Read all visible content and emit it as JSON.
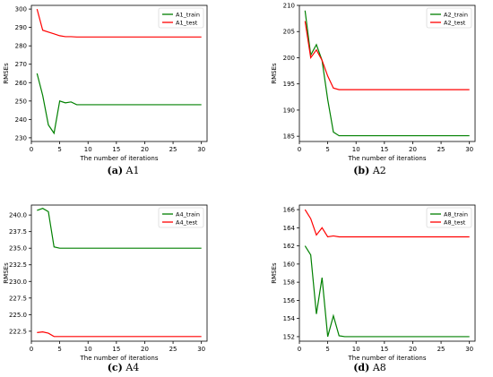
{
  "captions": [
    {
      "label": "(a)",
      "name": "A1"
    },
    {
      "label": "(b)",
      "name": "A2"
    },
    {
      "label": "(c)",
      "name": "A4"
    },
    {
      "label": "(d)",
      "name": "A8"
    }
  ],
  "chart_data": [
    {
      "id": "a1",
      "type": "line",
      "xlabel": "The number of iterations",
      "ylabel": "RMSEs",
      "xlim": [
        0,
        31
      ],
      "ylim": [
        228,
        302
      ],
      "xticks": [
        0,
        5,
        10,
        15,
        20,
        25,
        30
      ],
      "yticks": [
        230,
        240,
        250,
        260,
        270,
        280,
        290,
        300
      ],
      "ytick_labels": [
        "230",
        "240",
        "250",
        "260",
        "270",
        "280",
        "290",
        "300"
      ],
      "legend": "top-right",
      "x": [
        1,
        2,
        3,
        4,
        5,
        6,
        7,
        8,
        9,
        10,
        11,
        12,
        13,
        14,
        15,
        16,
        17,
        18,
        19,
        20,
        21,
        22,
        23,
        24,
        25,
        26,
        27,
        28,
        29,
        30
      ],
      "series": [
        {
          "name": "A1_train",
          "color": "#008000",
          "values": [
            265,
            253,
            237,
            232.5,
            250,
            249,
            249.5,
            248,
            248,
            248,
            248,
            248,
            248,
            248,
            248,
            248,
            248,
            248,
            248,
            248,
            248,
            248,
            248,
            248,
            248,
            248,
            248,
            248,
            248,
            248
          ]
        },
        {
          "name": "A1_test",
          "color": "#ff0000",
          "values": [
            300,
            288.5,
            287.5,
            286.5,
            285.5,
            285,
            285,
            284.8,
            284.8,
            284.8,
            284.8,
            284.8,
            284.8,
            284.8,
            284.8,
            284.8,
            284.8,
            284.8,
            284.8,
            284.8,
            284.8,
            284.8,
            284.8,
            284.8,
            284.8,
            284.8,
            284.8,
            284.8,
            284.8,
            284.8
          ]
        }
      ]
    },
    {
      "id": "a2",
      "type": "line",
      "xlabel": "The number of iterations",
      "ylabel": "RMSEs",
      "xlim": [
        0,
        31
      ],
      "ylim": [
        184,
        210
      ],
      "xticks": [
        0,
        5,
        10,
        15,
        20,
        25,
        30
      ],
      "yticks": [
        185,
        190,
        195,
        200,
        205,
        210
      ],
      "ytick_labels": [
        "185",
        "190",
        "195",
        "200",
        "205",
        "210"
      ],
      "legend": "top-right",
      "x": [
        1,
        2,
        3,
        4,
        5,
        6,
        7,
        8,
        9,
        10,
        11,
        12,
        13,
        14,
        15,
        16,
        17,
        18,
        19,
        20,
        21,
        22,
        23,
        24,
        25,
        26,
        27,
        28,
        29,
        30
      ],
      "series": [
        {
          "name": "A2_train",
          "color": "#008000",
          "values": [
            209,
            200.5,
            202.5,
            199.5,
            192,
            185.8,
            185.1,
            185.1,
            185.1,
            185.1,
            185.1,
            185.1,
            185.1,
            185.1,
            185.1,
            185.1,
            185.1,
            185.1,
            185.1,
            185.1,
            185.1,
            185.1,
            185.1,
            185.1,
            185.1,
            185.1,
            185.1,
            185.1,
            185.1,
            185.1
          ]
        },
        {
          "name": "A2_test",
          "color": "#ff0000",
          "values": [
            207,
            200,
            201.5,
            199.5,
            196.5,
            194.2,
            193.9,
            193.9,
            193.9,
            193.9,
            193.9,
            193.9,
            193.9,
            193.9,
            193.9,
            193.9,
            193.9,
            193.9,
            193.9,
            193.9,
            193.9,
            193.9,
            193.9,
            193.9,
            193.9,
            193.9,
            193.9,
            193.9,
            193.9,
            193.9
          ]
        }
      ]
    },
    {
      "id": "a4",
      "type": "line",
      "xlabel": "The number of iterations",
      "ylabel": "RMSEs",
      "xlim": [
        0,
        31
      ],
      "ylim": [
        221,
        241.5
      ],
      "xticks": [
        0,
        5,
        10,
        15,
        20,
        25,
        30
      ],
      "yticks": [
        222.5,
        225,
        227.5,
        230,
        232.5,
        235,
        237.5,
        240
      ],
      "ytick_labels": [
        "222.5",
        "225.0",
        "227.5",
        "230.0",
        "232.5",
        "235.0",
        "237.5",
        "240.0"
      ],
      "legend": "top-right",
      "x": [
        1,
        2,
        3,
        4,
        5,
        6,
        7,
        8,
        9,
        10,
        11,
        12,
        13,
        14,
        15,
        16,
        17,
        18,
        19,
        20,
        21,
        22,
        23,
        24,
        25,
        26,
        27,
        28,
        29,
        30
      ],
      "series": [
        {
          "name": "A4_train",
          "color": "#008000",
          "values": [
            240.7,
            241,
            240.5,
            235.2,
            235,
            235,
            235,
            235,
            235,
            235,
            235,
            235,
            235,
            235,
            235,
            235,
            235,
            235,
            235,
            235,
            235,
            235,
            235,
            235,
            235,
            235,
            235,
            235,
            235,
            235
          ]
        },
        {
          "name": "A4_test",
          "color": "#ff0000",
          "values": [
            222.3,
            222.4,
            222.2,
            221.7,
            221.7,
            221.7,
            221.7,
            221.7,
            221.7,
            221.7,
            221.7,
            221.7,
            221.7,
            221.7,
            221.7,
            221.7,
            221.7,
            221.7,
            221.7,
            221.7,
            221.7,
            221.7,
            221.7,
            221.7,
            221.7,
            221.7,
            221.7,
            221.7,
            221.7,
            221.7
          ]
        }
      ]
    },
    {
      "id": "a8",
      "type": "line",
      "xlabel": "The number of iterations",
      "ylabel": "RMSEs",
      "xlim": [
        0,
        31
      ],
      "ylim": [
        151.5,
        166.5
      ],
      "xticks": [
        0,
        5,
        10,
        15,
        20,
        25,
        30
      ],
      "yticks": [
        152,
        154,
        156,
        158,
        160,
        162,
        164,
        166
      ],
      "ytick_labels": [
        "152",
        "154",
        "156",
        "158",
        "160",
        "162",
        "164",
        "166"
      ],
      "legend": "top-right",
      "x": [
        1,
        2,
        3,
        4,
        5,
        6,
        7,
        8,
        9,
        10,
        11,
        12,
        13,
        14,
        15,
        16,
        17,
        18,
        19,
        20,
        21,
        22,
        23,
        24,
        25,
        26,
        27,
        28,
        29,
        30
      ],
      "series": [
        {
          "name": "A8_train",
          "color": "#008000",
          "values": [
            162,
            161,
            154.5,
            158.5,
            152,
            154.3,
            152.1,
            152,
            152,
            152,
            152,
            152,
            152,
            152,
            152,
            152,
            152,
            152,
            152,
            152,
            152,
            152,
            152,
            152,
            152,
            152,
            152,
            152,
            152,
            152
          ]
        },
        {
          "name": "A8_test",
          "color": "#ff0000",
          "values": [
            166,
            165,
            163.2,
            164,
            163,
            163.1,
            163,
            163,
            163,
            163,
            163,
            163,
            163,
            163,
            163,
            163,
            163,
            163,
            163,
            163,
            163,
            163,
            163,
            163,
            163,
            163,
            163,
            163,
            163,
            163
          ]
        }
      ]
    }
  ]
}
